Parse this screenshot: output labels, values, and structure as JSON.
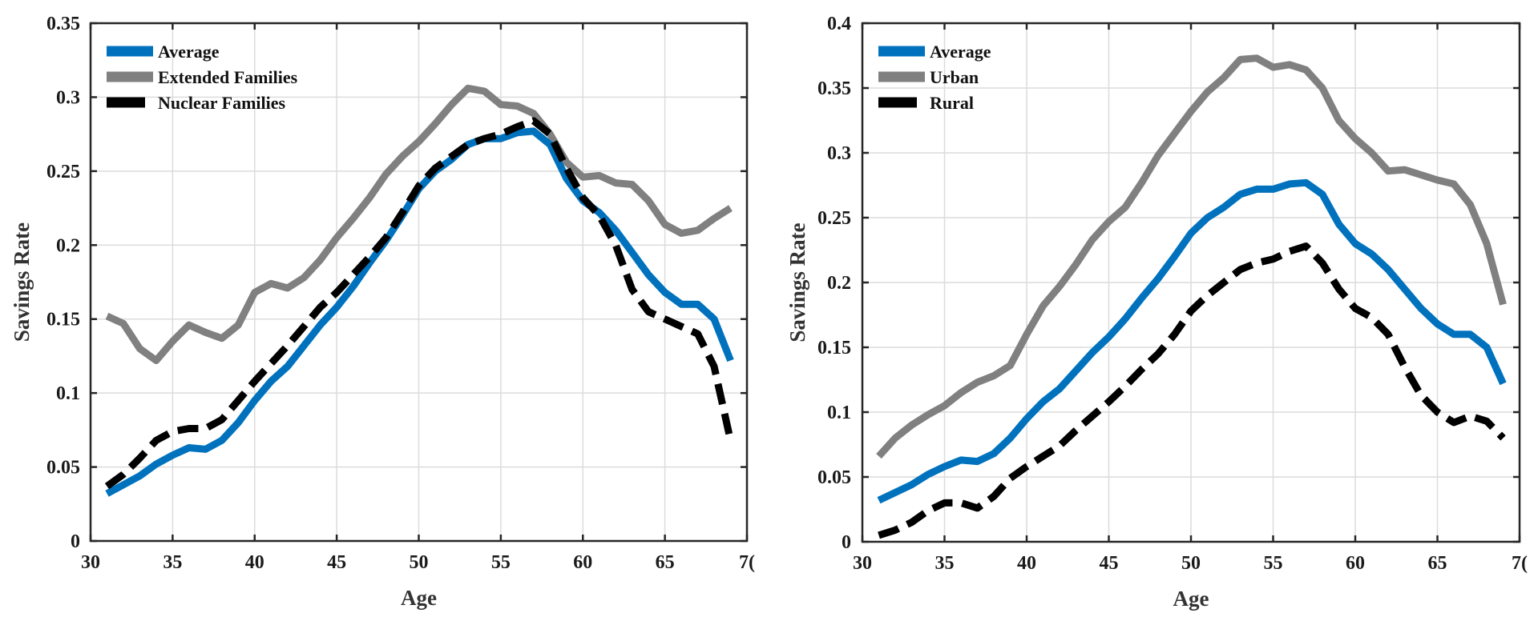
{
  "chart_data": [
    {
      "type": "line",
      "title": "",
      "xlabel": "Age",
      "ylabel": "Savings Rate",
      "xlim": [
        30,
        70
      ],
      "ylim": [
        0,
        0.35
      ],
      "xticks": [
        30,
        35,
        40,
        45,
        50,
        55,
        60,
        65,
        70
      ],
      "xtick_labels": [
        "30",
        "35",
        "40",
        "45",
        "50",
        "55",
        "60",
        "65",
        "7("
      ],
      "yticks": [
        0,
        0.05,
        0.1,
        0.15,
        0.2,
        0.25,
        0.3,
        0.35
      ],
      "ytick_labels": [
        "0",
        "0.05",
        "0.1",
        "0.15",
        "0.2",
        "0.25",
        "0.3",
        "0.35"
      ],
      "grid": true,
      "legend_position": "top-left",
      "x": [
        31,
        32,
        33,
        34,
        35,
        36,
        37,
        38,
        39,
        40,
        41,
        42,
        43,
        44,
        45,
        46,
        47,
        48,
        49,
        50,
        51,
        52,
        53,
        54,
        55,
        56,
        57,
        58,
        59,
        60,
        61,
        62,
        63,
        64,
        65,
        66,
        67,
        68,
        69
      ],
      "series": [
        {
          "name": "Average",
          "color": "#0072BD",
          "style": "solid",
          "values": [
            0.032,
            0.038,
            0.044,
            0.052,
            0.058,
            0.063,
            0.062,
            0.068,
            0.08,
            0.095,
            0.108,
            0.118,
            0.132,
            0.146,
            0.158,
            0.172,
            0.188,
            0.203,
            0.22,
            0.238,
            0.25,
            0.258,
            0.268,
            0.272,
            0.272,
            0.276,
            0.277,
            0.268,
            0.245,
            0.23,
            0.222,
            0.21,
            0.195,
            0.18,
            0.168,
            0.16,
            0.16,
            0.15,
            0.122
          ]
        },
        {
          "name": "Extended Families",
          "color": "#808080",
          "style": "solid",
          "values": [
            0.152,
            0.147,
            0.13,
            0.122,
            0.135,
            0.146,
            0.141,
            0.137,
            0.146,
            0.168,
            0.174,
            0.171,
            0.178,
            0.19,
            0.205,
            0.218,
            0.232,
            0.248,
            0.26,
            0.27,
            0.282,
            0.295,
            0.306,
            0.304,
            0.295,
            0.294,
            0.289,
            0.275,
            0.256,
            0.246,
            0.247,
            0.242,
            0.241,
            0.23,
            0.214,
            0.208,
            0.21,
            0.218,
            0.225
          ]
        },
        {
          "name": "Nuclear Families",
          "color": "#000000",
          "style": "dashed",
          "values": [
            0.037,
            0.045,
            0.056,
            0.068,
            0.074,
            0.076,
            0.076,
            0.082,
            0.095,
            0.108,
            0.12,
            0.132,
            0.145,
            0.158,
            0.168,
            0.18,
            0.192,
            0.205,
            0.222,
            0.24,
            0.252,
            0.26,
            0.268,
            0.272,
            0.275,
            0.28,
            0.284,
            0.275,
            0.252,
            0.232,
            0.22,
            0.2,
            0.17,
            0.155,
            0.15,
            0.145,
            0.14,
            0.118,
            0.068
          ]
        }
      ]
    },
    {
      "type": "line",
      "title": "",
      "xlabel": "Age",
      "ylabel": "Savings Rate",
      "xlim": [
        30,
        70
      ],
      "ylim": [
        0,
        0.4
      ],
      "xticks": [
        30,
        35,
        40,
        45,
        50,
        55,
        60,
        65,
        70
      ],
      "xtick_labels": [
        "30",
        "35",
        "40",
        "45",
        "50",
        "55",
        "60",
        "65",
        "7("
      ],
      "yticks": [
        0,
        0.05,
        0.1,
        0.15,
        0.2,
        0.25,
        0.3,
        0.35,
        0.4
      ],
      "ytick_labels": [
        "0",
        "0.05",
        "0.1",
        "0.15",
        "0.2",
        "0.25",
        "0.3",
        "0.35",
        "0.4"
      ],
      "grid": true,
      "legend_position": "top-left",
      "x": [
        31,
        32,
        33,
        34,
        35,
        36,
        37,
        38,
        39,
        40,
        41,
        42,
        43,
        44,
        45,
        46,
        47,
        48,
        49,
        50,
        51,
        52,
        53,
        54,
        55,
        56,
        57,
        58,
        59,
        60,
        61,
        62,
        63,
        64,
        65,
        66,
        67,
        68,
        69
      ],
      "series": [
        {
          "name": "Average",
          "color": "#0072BD",
          "style": "solid",
          "values": [
            0.032,
            0.038,
            0.044,
            0.052,
            0.058,
            0.063,
            0.062,
            0.068,
            0.08,
            0.095,
            0.108,
            0.118,
            0.132,
            0.146,
            0.158,
            0.172,
            0.188,
            0.203,
            0.22,
            0.238,
            0.25,
            0.258,
            0.268,
            0.272,
            0.272,
            0.276,
            0.277,
            0.268,
            0.245,
            0.23,
            0.222,
            0.21,
            0.195,
            0.18,
            0.168,
            0.16,
            0.16,
            0.15,
            0.122
          ]
        },
        {
          "name": "Urban",
          "color": "#808080",
          "style": "solid",
          "values": [
            0.066,
            0.08,
            0.09,
            0.098,
            0.105,
            0.115,
            0.123,
            0.128,
            0.136,
            0.16,
            0.182,
            0.197,
            0.214,
            0.233,
            0.247,
            0.258,
            0.277,
            0.298,
            0.315,
            0.332,
            0.347,
            0.358,
            0.372,
            0.373,
            0.366,
            0.368,
            0.364,
            0.35,
            0.325,
            0.311,
            0.3,
            0.286,
            0.287,
            0.283,
            0.279,
            0.276,
            0.26,
            0.23,
            0.183
          ]
        },
        {
          "name": "Rural",
          "color": "#000000",
          "style": "dashed",
          "values": [
            0.005,
            0.009,
            0.015,
            0.024,
            0.03,
            0.03,
            0.026,
            0.035,
            0.049,
            0.058,
            0.066,
            0.074,
            0.086,
            0.097,
            0.108,
            0.12,
            0.133,
            0.145,
            0.16,
            0.178,
            0.19,
            0.2,
            0.21,
            0.215,
            0.218,
            0.224,
            0.228,
            0.215,
            0.195,
            0.18,
            0.173,
            0.16,
            0.135,
            0.113,
            0.1,
            0.092,
            0.097,
            0.093,
            0.08
          ]
        }
      ]
    }
  ]
}
